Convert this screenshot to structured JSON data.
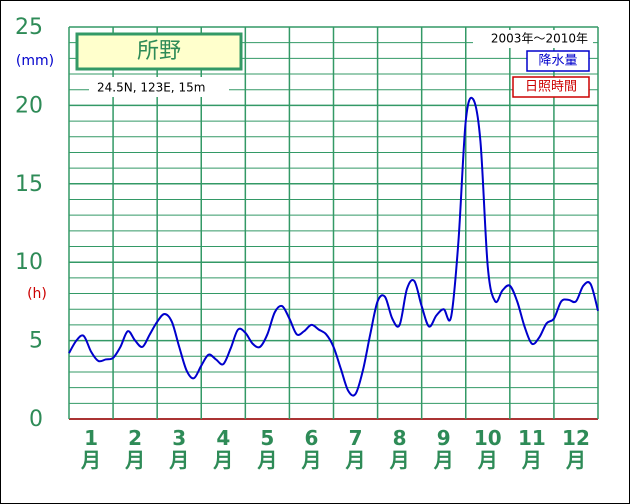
{
  "chart_data": {
    "type": "line",
    "title": "所野",
    "subtitle": "24.5N,  123E,  15m",
    "period": "2003年～2010年",
    "y_unit_left": "(mm)",
    "y_unit_right": "(h)",
    "categories": [
      "1月",
      "2月",
      "3月",
      "4月",
      "5月",
      "6月",
      "7月",
      "8月",
      "9月",
      "10月",
      "11月",
      "12月"
    ],
    "x": [
      0,
      1,
      2,
      3,
      4,
      5,
      6,
      7,
      8,
      9,
      10,
      11,
      12,
      13,
      14,
      15,
      16,
      17,
      18,
      19,
      20,
      21,
      22,
      23,
      24,
      25,
      26,
      27,
      28,
      29,
      30,
      31,
      32,
      33,
      34,
      35,
      36,
      37,
      38,
      39,
      40,
      41,
      42,
      43,
      44,
      45,
      46,
      47,
      48,
      49,
      50,
      51,
      52,
      53,
      54,
      55,
      56,
      57,
      58,
      59,
      60,
      61,
      62,
      63,
      64,
      65,
      66,
      67,
      68,
      69,
      70,
      71,
      72
    ],
    "series": [
      {
        "name": "降水量",
        "color": "#0000cc",
        "values": [
          4.2,
          5.0,
          5.3,
          4.3,
          3.7,
          3.8,
          3.9,
          4.6,
          5.6,
          5.0,
          4.6,
          5.4,
          6.2,
          6.7,
          6.2,
          4.6,
          3.1,
          2.6,
          3.4,
          4.1,
          3.8,
          3.5,
          4.5,
          5.7,
          5.5,
          4.8,
          4.6,
          5.4,
          6.8,
          7.2,
          6.4,
          5.4,
          5.6,
          6.0,
          5.7,
          5.4,
          4.6,
          3.2,
          1.8,
          1.6,
          3.1,
          5.4,
          7.5,
          7.8,
          6.4,
          6.0,
          8.3,
          8.8,
          7.2,
          5.9,
          6.6,
          7.0,
          6.5,
          11.3,
          19.0,
          20.4,
          17.7,
          9.7,
          7.5,
          8.2,
          8.5,
          7.5,
          5.9,
          4.8,
          5.2,
          6.1,
          6.4,
          7.5,
          7.6,
          7.5,
          8.5,
          8.6,
          6.9
        ]
      }
    ],
    "extra_legend": {
      "name": "日照時間",
      "color": "#cc0000"
    },
    "xlim": [
      0,
      72
    ],
    "xticks": [
      0,
      6,
      12,
      18,
      24,
      30,
      36,
      42,
      48,
      54,
      60,
      66,
      72
    ],
    "ylim": [
      0,
      25
    ],
    "yticks": [
      0,
      5,
      10,
      15,
      20,
      25
    ],
    "minor_yticks": [
      1,
      2,
      3,
      4,
      6,
      7,
      8,
      9,
      11,
      12,
      13,
      14,
      16,
      17,
      18,
      19,
      21,
      22,
      23,
      24
    ],
    "grid": true
  }
}
